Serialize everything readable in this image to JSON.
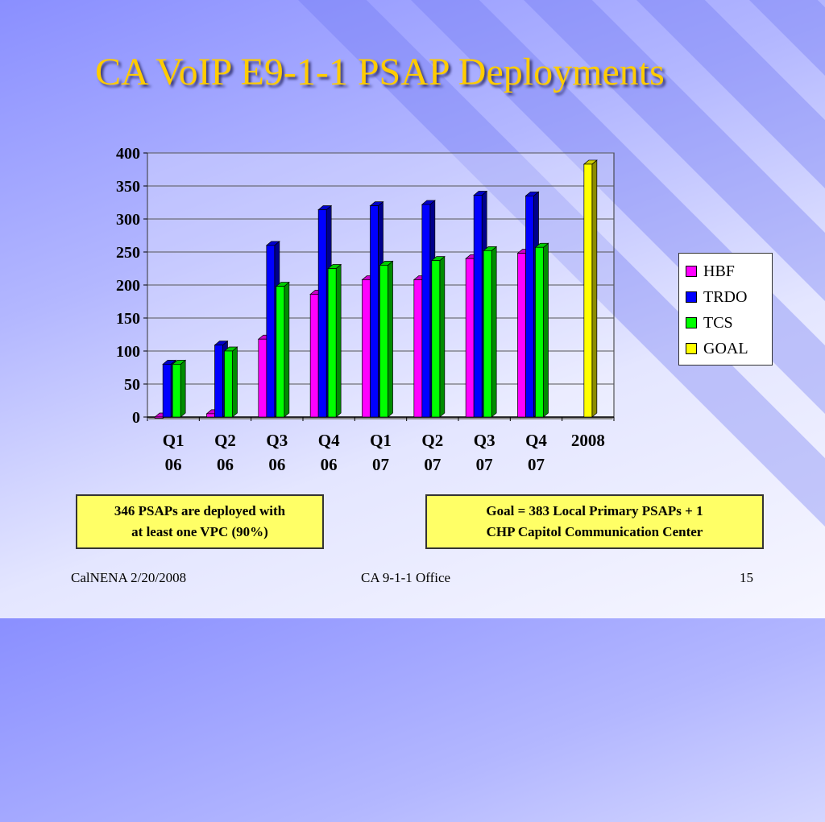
{
  "slide": {
    "title": "CA VoIP E9-1-1 PSAP Deployments",
    "note_left_line1": "346 PSAPs are deployed with",
    "note_left_line2": "at least one VPC (90%)",
    "note_right_line1": "Goal = 383 Local Primary PSAPs + 1",
    "note_right_line2": "CHP Capitol Communication Center",
    "footer_left": "CalNENA 2/20/2008",
    "footer_center": "CA 9-1-1 Office",
    "footer_right": "15"
  },
  "chart_data": {
    "type": "bar",
    "categories": [
      [
        "Q1",
        "06"
      ],
      [
        "Q2",
        "06"
      ],
      [
        "Q3",
        "06"
      ],
      [
        "Q4",
        "06"
      ],
      [
        "Q1",
        "07"
      ],
      [
        "Q2",
        "07"
      ],
      [
        "Q3",
        "07"
      ],
      [
        "Q4",
        "07"
      ],
      [
        "2008",
        ""
      ]
    ],
    "ylim": [
      0,
      400
    ],
    "yticks": [
      0,
      50,
      100,
      150,
      200,
      250,
      300,
      350,
      400
    ],
    "grid": true,
    "legend_position": "right",
    "series": [
      {
        "name": "HBF",
        "color": "#ff00ff",
        "values": [
          0,
          5,
          118,
          186,
          208,
          208,
          240,
          248,
          0
        ]
      },
      {
        "name": "TRDO",
        "color": "#0000ff",
        "values": [
          80,
          109,
          260,
          314,
          320,
          322,
          336,
          335,
          0
        ]
      },
      {
        "name": "TCS",
        "color": "#00ff00",
        "values": [
          80,
          100,
          198,
          225,
          230,
          237,
          252,
          257,
          0
        ]
      },
      {
        "name": "GOAL",
        "color": "#ffff00",
        "values": [
          0,
          0,
          0,
          0,
          0,
          0,
          0,
          0,
          383
        ]
      }
    ]
  }
}
